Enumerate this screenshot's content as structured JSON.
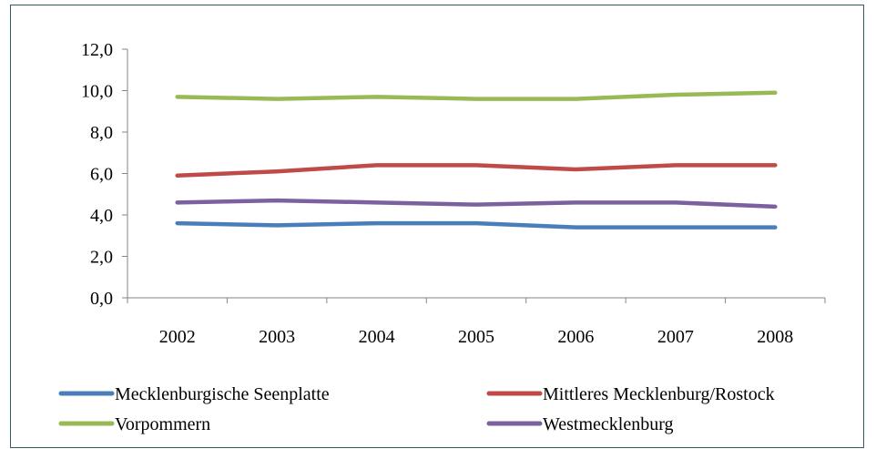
{
  "chart_data": {
    "type": "line",
    "title": "",
    "xlabel": "",
    "ylabel": "",
    "categories": [
      "2002",
      "2003",
      "2004",
      "2005",
      "2006",
      "2007",
      "2008"
    ],
    "ylim": [
      0,
      12
    ],
    "yticks": [
      "0,0",
      "2,0",
      "4,0",
      "6,0",
      "8,0",
      "10,0",
      "12,0"
    ],
    "grid": false,
    "legend_position": "bottom",
    "series": [
      {
        "name": "Mecklenburgische Seenplatte",
        "color": "#4a7ebb",
        "values": [
          3.6,
          3.5,
          3.6,
          3.6,
          3.4,
          3.4,
          3.4
        ]
      },
      {
        "name": "Mittleres Mecklenburg/Rostock",
        "color": "#be4b48",
        "values": [
          5.9,
          6.1,
          6.4,
          6.4,
          6.2,
          6.4,
          6.4
        ]
      },
      {
        "name": "Vorpommern",
        "color": "#98b954",
        "values": [
          9.7,
          9.6,
          9.7,
          9.6,
          9.6,
          9.8,
          9.9
        ]
      },
      {
        "name": "Westmecklenburg",
        "color": "#7d60a0",
        "values": [
          4.6,
          4.7,
          4.6,
          4.5,
          4.6,
          4.6,
          4.4
        ]
      }
    ]
  }
}
